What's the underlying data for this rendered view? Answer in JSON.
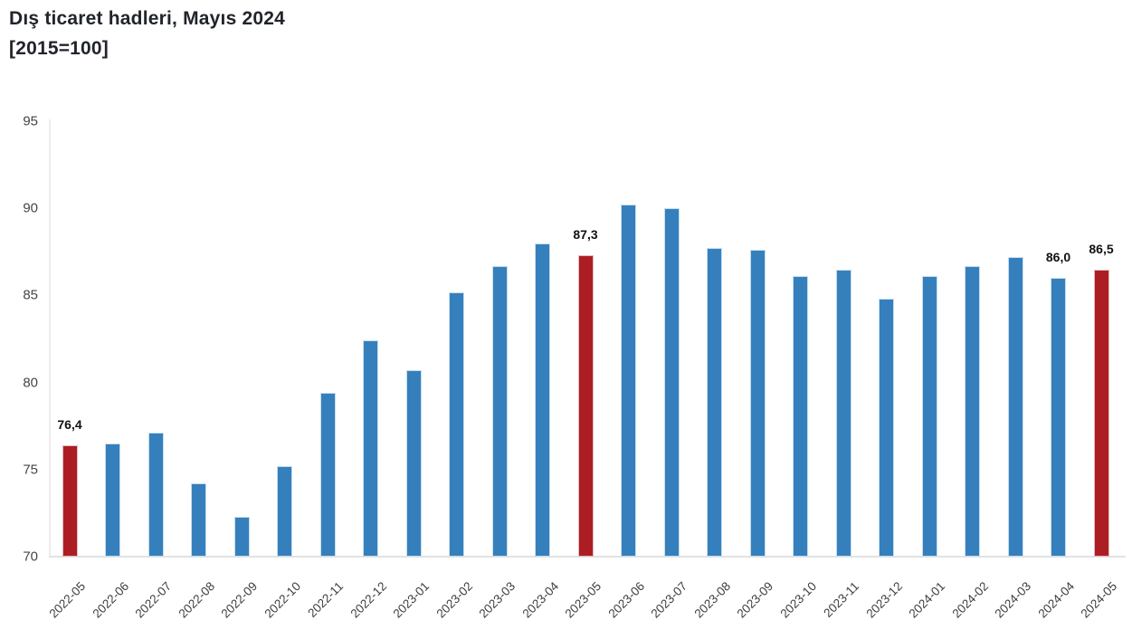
{
  "chart_data": {
    "type": "bar",
    "title": "Dış ticaret hadleri, Mayıs 2024",
    "subtitle": "[2015=100]",
    "xlabel": "",
    "ylabel": "",
    "ylim": [
      70,
      95
    ],
    "yticks": [
      70,
      75,
      80,
      85,
      90,
      95
    ],
    "grid": false,
    "legend": "none",
    "categories": [
      "2022-05",
      "2022-06",
      "2022-07",
      "2022-08",
      "2022-09",
      "2022-10",
      "2022-11",
      "2022-12",
      "2023-01",
      "2023-02",
      "2023-03",
      "2023-04",
      "2023-05",
      "2023-06",
      "2023-07",
      "2023-08",
      "2023-09",
      "2023-10",
      "2023-11",
      "2023-12",
      "2024-01",
      "2024-02",
      "2024-03",
      "2024-04",
      "2024-05"
    ],
    "values": [
      76.4,
      76.5,
      77.1,
      74.2,
      72.3,
      75.2,
      79.4,
      82.4,
      80.7,
      85.2,
      86.7,
      88.0,
      87.3,
      90.2,
      90.0,
      87.7,
      87.6,
      86.1,
      86.5,
      84.8,
      86.1,
      86.7,
      87.2,
      86.0,
      86.5
    ],
    "bar_labels": [
      "76,4",
      null,
      null,
      null,
      null,
      null,
      null,
      null,
      null,
      null,
      null,
      null,
      "87,3",
      null,
      null,
      null,
      null,
      null,
      null,
      null,
      null,
      null,
      null,
      "86,0",
      "86,5"
    ],
    "highlight_indices": [
      0,
      12,
      24
    ],
    "colors": {
      "bar": "#3580BC",
      "bar_edge": "#c6ddef",
      "highlight": "#AC1E23",
      "highlight_edge": "#e0bcbe",
      "axis": "#e2e2e2",
      "tick_text": "#454545",
      "title_text": "#21252b"
    }
  }
}
